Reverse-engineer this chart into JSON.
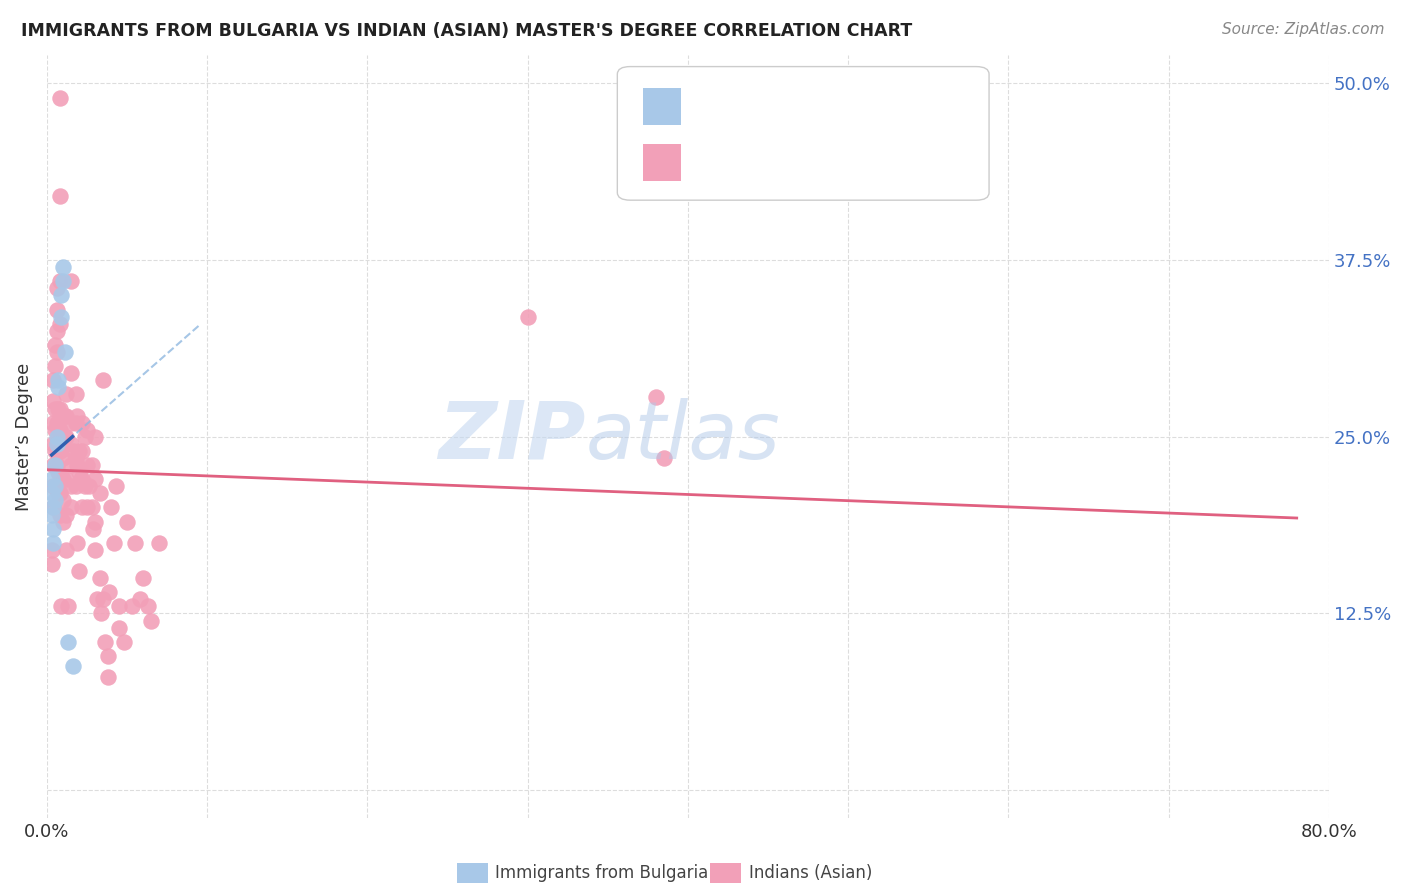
{
  "title": "IMMIGRANTS FROM BULGARIA VS INDIAN (ASIAN) MASTER'S DEGREE CORRELATION CHART",
  "source": "Source: ZipAtlas.com",
  "ylabel": "Master’s Degree",
  "xlim": [
    0.0,
    0.8
  ],
  "ylim": [
    -0.02,
    0.52
  ],
  "ytick_vals": [
    0.0,
    0.125,
    0.25,
    0.375,
    0.5
  ],
  "ytick_labels": [
    "",
    "12.5%",
    "25.0%",
    "37.5%",
    "50.0%"
  ],
  "xtick_vals": [
    0.0,
    0.1,
    0.2,
    0.3,
    0.4,
    0.5,
    0.6,
    0.7,
    0.8
  ],
  "xtick_labels": [
    "0.0%",
    "",
    "",
    "",
    "",
    "",
    "",
    "",
    "80.0%"
  ],
  "bulgaria_color": "#a8c8e8",
  "india_color": "#f2a0b8",
  "trend_bulgaria_color": "#3060b0",
  "trend_india_color": "#e06080",
  "bg_color": "#ffffff",
  "grid_color": "#dddddd",
  "watermark_zip_color": "#c5d8f0",
  "watermark_atlas_color": "#b0c8e8",
  "title_color": "#222222",
  "source_color": "#888888",
  "axis_label_color": "#333333",
  "ytick_color": "#4472c4",
  "legend_border_color": "#cccccc",
  "legend_r1_color": "#4472c4",
  "legend_r2_color": "#c0305a",
  "bulgaria_points": [
    [
      0.003,
      0.195
    ],
    [
      0.003,
      0.21
    ],
    [
      0.003,
      0.22
    ],
    [
      0.004,
      0.185
    ],
    [
      0.004,
      0.175
    ],
    [
      0.004,
      0.2
    ],
    [
      0.005,
      0.215
    ],
    [
      0.005,
      0.205
    ],
    [
      0.005,
      0.23
    ],
    [
      0.006,
      0.25
    ],
    [
      0.006,
      0.245
    ],
    [
      0.007,
      0.29
    ],
    [
      0.007,
      0.285
    ],
    [
      0.009,
      0.335
    ],
    [
      0.009,
      0.35
    ],
    [
      0.01,
      0.36
    ],
    [
      0.01,
      0.37
    ],
    [
      0.011,
      0.31
    ],
    [
      0.013,
      0.105
    ],
    [
      0.016,
      0.088
    ]
  ],
  "india_points": [
    [
      0.003,
      0.16
    ],
    [
      0.003,
      0.17
    ],
    [
      0.004,
      0.29
    ],
    [
      0.004,
      0.275
    ],
    [
      0.004,
      0.26
    ],
    [
      0.004,
      0.245
    ],
    [
      0.004,
      0.23
    ],
    [
      0.004,
      0.215
    ],
    [
      0.004,
      0.2
    ],
    [
      0.005,
      0.315
    ],
    [
      0.005,
      0.3
    ],
    [
      0.005,
      0.27
    ],
    [
      0.005,
      0.255
    ],
    [
      0.005,
      0.24
    ],
    [
      0.006,
      0.355
    ],
    [
      0.006,
      0.34
    ],
    [
      0.006,
      0.325
    ],
    [
      0.006,
      0.31
    ],
    [
      0.006,
      0.26
    ],
    [
      0.006,
      0.245
    ],
    [
      0.006,
      0.23
    ],
    [
      0.006,
      0.215
    ],
    [
      0.007,
      0.27
    ],
    [
      0.007,
      0.255
    ],
    [
      0.007,
      0.24
    ],
    [
      0.007,
      0.225
    ],
    [
      0.007,
      0.21
    ],
    [
      0.008,
      0.49
    ],
    [
      0.008,
      0.42
    ],
    [
      0.008,
      0.36
    ],
    [
      0.008,
      0.33
    ],
    [
      0.008,
      0.27
    ],
    [
      0.008,
      0.255
    ],
    [
      0.008,
      0.24
    ],
    [
      0.008,
      0.21
    ],
    [
      0.008,
      0.195
    ],
    [
      0.009,
      0.13
    ],
    [
      0.01,
      0.265
    ],
    [
      0.01,
      0.25
    ],
    [
      0.01,
      0.235
    ],
    [
      0.01,
      0.22
    ],
    [
      0.01,
      0.205
    ],
    [
      0.01,
      0.19
    ],
    [
      0.011,
      0.265
    ],
    [
      0.011,
      0.25
    ],
    [
      0.012,
      0.28
    ],
    [
      0.012,
      0.265
    ],
    [
      0.012,
      0.25
    ],
    [
      0.012,
      0.22
    ],
    [
      0.012,
      0.195
    ],
    [
      0.012,
      0.17
    ],
    [
      0.013,
      0.13
    ],
    [
      0.015,
      0.36
    ],
    [
      0.015,
      0.295
    ],
    [
      0.015,
      0.26
    ],
    [
      0.015,
      0.245
    ],
    [
      0.015,
      0.23
    ],
    [
      0.015,
      0.215
    ],
    [
      0.015,
      0.2
    ],
    [
      0.016,
      0.24
    ],
    [
      0.018,
      0.28
    ],
    [
      0.018,
      0.26
    ],
    [
      0.018,
      0.235
    ],
    [
      0.018,
      0.215
    ],
    [
      0.019,
      0.265
    ],
    [
      0.019,
      0.23
    ],
    [
      0.019,
      0.175
    ],
    [
      0.02,
      0.24
    ],
    [
      0.02,
      0.225
    ],
    [
      0.02,
      0.155
    ],
    [
      0.021,
      0.22
    ],
    [
      0.022,
      0.26
    ],
    [
      0.022,
      0.24
    ],
    [
      0.022,
      0.22
    ],
    [
      0.022,
      0.2
    ],
    [
      0.024,
      0.25
    ],
    [
      0.024,
      0.215
    ],
    [
      0.025,
      0.255
    ],
    [
      0.025,
      0.23
    ],
    [
      0.025,
      0.2
    ],
    [
      0.026,
      0.215
    ],
    [
      0.028,
      0.23
    ],
    [
      0.028,
      0.2
    ],
    [
      0.029,
      0.185
    ],
    [
      0.03,
      0.25
    ],
    [
      0.03,
      0.22
    ],
    [
      0.03,
      0.19
    ],
    [
      0.03,
      0.17
    ],
    [
      0.031,
      0.135
    ],
    [
      0.033,
      0.21
    ],
    [
      0.033,
      0.15
    ],
    [
      0.034,
      0.125
    ],
    [
      0.035,
      0.29
    ],
    [
      0.035,
      0.135
    ],
    [
      0.036,
      0.105
    ],
    [
      0.038,
      0.095
    ],
    [
      0.038,
      0.08
    ],
    [
      0.039,
      0.14
    ],
    [
      0.04,
      0.2
    ],
    [
      0.042,
      0.175
    ],
    [
      0.043,
      0.215
    ],
    [
      0.045,
      0.13
    ],
    [
      0.045,
      0.115
    ],
    [
      0.048,
      0.105
    ],
    [
      0.05,
      0.19
    ],
    [
      0.053,
      0.13
    ],
    [
      0.055,
      0.175
    ],
    [
      0.058,
      0.135
    ],
    [
      0.06,
      0.15
    ],
    [
      0.063,
      0.13
    ],
    [
      0.065,
      0.12
    ],
    [
      0.07,
      0.175
    ],
    [
      0.3,
      0.335
    ],
    [
      0.38,
      0.278
    ],
    [
      0.385,
      0.235
    ]
  ]
}
